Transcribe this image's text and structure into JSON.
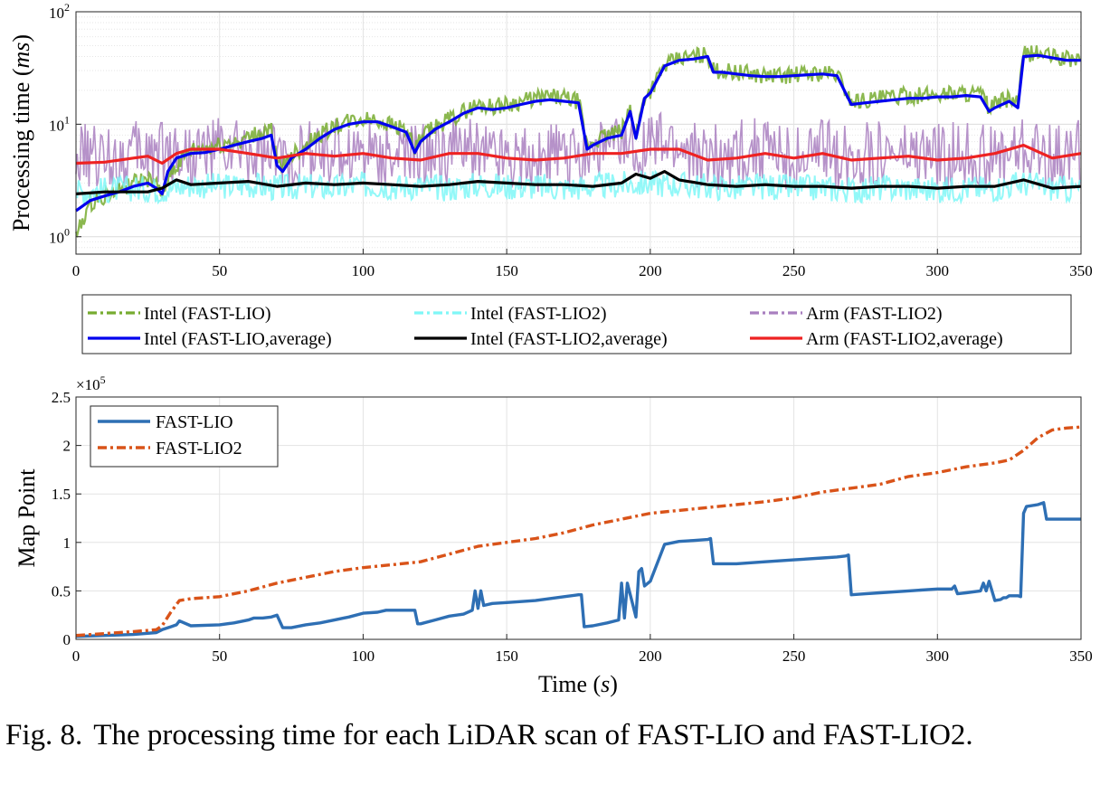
{
  "chart_data": [
    {
      "type": "line",
      "ylabel": "Processing time (ms)",
      "ylabel_plain": "Processing time (",
      "ylabel_unit": "ms",
      "xlabel": "",
      "xlim": [
        0,
        350
      ],
      "ylim": [
        0.7,
        100
      ],
      "yscale": "log",
      "grid": true,
      "x_ticks": [
        "0",
        "50",
        "100",
        "150",
        "200",
        "250",
        "300",
        "350"
      ],
      "y_ticks": [
        {
          "base": "10",
          "exp": "0"
        },
        {
          "base": "10",
          "exp": "1"
        },
        {
          "base": "10",
          "exp": "2"
        }
      ],
      "legend_position": "below",
      "series": [
        {
          "name": "Intel (FAST-LIO)",
          "color": "#77ac30",
          "style": "dash-dot",
          "kind": "raw",
          "x": [
            0,
            5,
            10,
            15,
            20,
            25,
            28,
            30,
            32,
            35,
            40,
            45,
            50,
            55,
            60,
            65,
            68,
            70,
            72,
            75,
            80,
            85,
            90,
            95,
            100,
            105,
            110,
            115,
            118,
            120,
            125,
            130,
            135,
            140,
            145,
            150,
            155,
            160,
            165,
            170,
            175,
            178,
            180,
            185,
            190,
            193,
            195,
            198,
            200,
            205,
            210,
            215,
            220,
            222,
            225,
            230,
            235,
            240,
            245,
            250,
            255,
            260,
            265,
            270,
            275,
            280,
            285,
            290,
            295,
            300,
            305,
            310,
            315,
            318,
            320,
            325,
            328,
            330,
            335,
            340,
            345,
            350
          ],
          "y": [
            1.0,
            2.0,
            2.3,
            2.6,
            3.0,
            3.2,
            2.8,
            2.2,
            3.5,
            4.2,
            5.8,
            6.0,
            6.5,
            7.0,
            7.5,
            8.5,
            9.0,
            4.5,
            4.0,
            5.5,
            6.5,
            8.0,
            9.5,
            10.5,
            11.0,
            11.0,
            10.0,
            9.0,
            5.8,
            7.5,
            9.5,
            11.0,
            13.0,
            15.0,
            14.5,
            15.0,
            16.0,
            17.0,
            17.5,
            17.0,
            16.0,
            6.5,
            7.0,
            8.0,
            8.5,
            14.0,
            8.0,
            18.0,
            20.0,
            33.0,
            38.0,
            40.0,
            42.0,
            30.0,
            30.0,
            29.0,
            28.0,
            27.0,
            27.0,
            27.5,
            28.0,
            28.5,
            28.0,
            16.0,
            16.5,
            17.0,
            17.5,
            18.0,
            18.0,
            18.5,
            19.0,
            19.0,
            18.5,
            14.0,
            15.0,
            17.0,
            15.0,
            42.0,
            43.0,
            40.0,
            38.0,
            38.0
          ]
        },
        {
          "name": "Intel (FAST-LIO2)",
          "color": "#7ff7f7",
          "style": "dash-dot",
          "kind": "raw",
          "x": [
            0,
            10,
            20,
            30,
            40,
            50,
            60,
            70,
            80,
            90,
            100,
            110,
            120,
            130,
            140,
            150,
            160,
            170,
            180,
            190,
            200,
            210,
            220,
            230,
            240,
            250,
            260,
            270,
            280,
            290,
            300,
            310,
            320,
            330,
            340,
            350
          ],
          "y": [
            2.5,
            2.6,
            2.7,
            2.6,
            2.9,
            2.8,
            2.9,
            2.7,
            2.8,
            2.7,
            2.9,
            2.8,
            2.8,
            2.7,
            2.9,
            2.8,
            2.8,
            2.7,
            2.8,
            2.9,
            3.0,
            2.9,
            2.8,
            2.7,
            2.8,
            2.7,
            2.7,
            2.6,
            2.7,
            2.7,
            2.6,
            2.7,
            2.7,
            3.0,
            2.7,
            2.6
          ]
        },
        {
          "name": "Arm (FAST-LIO2)",
          "color": "#a97fbf",
          "style": "dash-dot",
          "kind": "raw",
          "x": [
            0,
            10,
            20,
            30,
            40,
            50,
            60,
            70,
            80,
            90,
            100,
            110,
            120,
            130,
            140,
            150,
            160,
            170,
            180,
            190,
            200,
            210,
            220,
            230,
            240,
            250,
            260,
            270,
            280,
            290,
            300,
            310,
            320,
            330,
            340,
            350
          ],
          "y": [
            5.0,
            5.0,
            5.5,
            6.0,
            5.5,
            6.0,
            5.5,
            5.0,
            5.5,
            5.5,
            6.0,
            5.5,
            5.0,
            6.0,
            6.0,
            5.5,
            5.0,
            5.0,
            6.0,
            6.0,
            6.5,
            6.0,
            5.0,
            5.5,
            6.0,
            5.0,
            5.5,
            5.0,
            5.5,
            5.0,
            5.0,
            5.5,
            5.0,
            6.0,
            5.0,
            5.5
          ]
        },
        {
          "name": "Intel (FAST-LIO,average)",
          "color": "#0000ee",
          "style": "solid",
          "kind": "average",
          "x": [
            0,
            5,
            10,
            15,
            20,
            25,
            28,
            30,
            32,
            35,
            40,
            45,
            50,
            55,
            60,
            65,
            68,
            70,
            72,
            75,
            80,
            85,
            90,
            95,
            100,
            105,
            110,
            115,
            118,
            120,
            125,
            130,
            135,
            140,
            145,
            150,
            155,
            160,
            165,
            170,
            175,
            178,
            180,
            185,
            190,
            193,
            195,
            198,
            200,
            205,
            210,
            215,
            220,
            222,
            225,
            230,
            235,
            240,
            245,
            250,
            255,
            260,
            265,
            270,
            275,
            280,
            285,
            290,
            295,
            300,
            305,
            310,
            315,
            318,
            320,
            325,
            328,
            330,
            335,
            340,
            345,
            350
          ],
          "y": [
            1.7,
            2.1,
            2.3,
            2.5,
            2.8,
            3.0,
            2.7,
            2.4,
            3.8,
            5.0,
            5.5,
            5.6,
            6.0,
            6.5,
            7.0,
            7.5,
            8.0,
            4.3,
            3.8,
            5.0,
            6.0,
            7.5,
            9.0,
            10.0,
            10.5,
            10.5,
            9.5,
            8.5,
            5.6,
            7.0,
            9.0,
            10.5,
            12.5,
            14.0,
            13.5,
            14.0,
            15.0,
            16.0,
            16.5,
            16.0,
            15.5,
            6.0,
            6.5,
            7.5,
            8.0,
            13.0,
            7.5,
            17.0,
            19.0,
            33.0,
            37.0,
            38.0,
            40.0,
            29.0,
            29.0,
            28.0,
            27.0,
            26.5,
            26.5,
            27.0,
            27.5,
            28.0,
            27.0,
            15.0,
            15.5,
            16.0,
            16.5,
            17.0,
            17.0,
            17.5,
            17.5,
            18.0,
            17.5,
            13.0,
            14.0,
            16.0,
            14.0,
            40.0,
            41.0,
            39.0,
            37.0,
            37.0
          ]
        },
        {
          "name": "Intel (FAST-LIO2,average)",
          "color": "#000000",
          "style": "solid",
          "kind": "average",
          "x": [
            0,
            10,
            20,
            25,
            30,
            35,
            40,
            50,
            60,
            70,
            80,
            90,
            100,
            110,
            120,
            130,
            140,
            150,
            160,
            170,
            180,
            190,
            195,
            200,
            205,
            210,
            220,
            230,
            240,
            250,
            260,
            270,
            280,
            290,
            300,
            310,
            320,
            330,
            340,
            350
          ],
          "y": [
            2.4,
            2.5,
            2.5,
            2.5,
            2.7,
            3.2,
            2.9,
            3.0,
            3.1,
            2.8,
            3.0,
            2.9,
            3.0,
            2.9,
            2.8,
            2.9,
            3.1,
            3.0,
            2.9,
            2.9,
            2.8,
            3.0,
            3.6,
            3.3,
            3.8,
            3.2,
            2.9,
            2.8,
            2.9,
            2.8,
            2.8,
            2.7,
            2.8,
            2.8,
            2.7,
            2.8,
            2.8,
            3.2,
            2.7,
            2.8
          ]
        },
        {
          "name": "Arm (FAST-LIO2,average)",
          "color": "#ee2222",
          "style": "solid",
          "kind": "average",
          "x": [
            0,
            10,
            20,
            25,
            30,
            35,
            40,
            50,
            60,
            70,
            80,
            90,
            100,
            110,
            120,
            130,
            140,
            150,
            160,
            170,
            180,
            190,
            200,
            210,
            220,
            230,
            240,
            250,
            260,
            270,
            280,
            290,
            300,
            310,
            320,
            330,
            340,
            350
          ],
          "y": [
            4.5,
            4.6,
            5.0,
            5.2,
            4.5,
            5.5,
            6.0,
            6.0,
            5.5,
            5.0,
            5.5,
            5.2,
            5.5,
            5.0,
            4.8,
            5.5,
            5.5,
            5.0,
            4.8,
            5.0,
            5.5,
            5.5,
            6.0,
            6.0,
            4.8,
            5.0,
            5.5,
            5.0,
            5.5,
            4.8,
            5.0,
            5.2,
            4.8,
            5.0,
            5.5,
            6.5,
            5.0,
            5.5
          ]
        }
      ]
    },
    {
      "type": "line",
      "xlabel": "Time (s)",
      "xlabel_plain": "Time (",
      "xlabel_unit": "s",
      "ylabel": "Map Point",
      "xlim": [
        0,
        350
      ],
      "ylim": [
        0,
        2.5
      ],
      "y_multiplier": {
        "base": "×10",
        "exp": "5"
      },
      "grid": true,
      "x_ticks": [
        "0",
        "50",
        "100",
        "150",
        "200",
        "250",
        "300",
        "350"
      ],
      "y_ticks": [
        "0",
        "0.5",
        "1",
        "1.5",
        "2",
        "2.5"
      ],
      "legend_position": "top-left",
      "series": [
        {
          "name": "FAST-LIO",
          "color": "#2e6fb4",
          "style": "solid",
          "x": [
            0,
            10,
            20,
            28,
            30,
            33,
            35,
            36,
            40,
            50,
            55,
            60,
            62,
            65,
            68,
            70,
            72,
            75,
            80,
            85,
            90,
            95,
            100,
            105,
            108,
            110,
            112,
            115,
            118,
            119,
            120,
            125,
            130,
            135,
            138,
            139,
            140,
            141,
            142,
            145,
            150,
            160,
            170,
            175,
            176,
            177,
            180,
            185,
            189,
            190,
            191,
            192,
            195,
            196,
            197,
            198,
            200,
            205,
            210,
            215,
            220,
            221,
            222,
            225,
            230,
            240,
            250,
            260,
            265,
            268,
            269,
            270,
            275,
            280,
            290,
            300,
            305,
            306,
            307,
            310,
            315,
            316,
            317,
            318,
            320,
            322,
            323,
            324,
            325,
            328,
            329,
            330,
            331,
            335,
            337,
            338,
            340,
            345,
            350
          ],
          "y": [
            0.03,
            0.04,
            0.05,
            0.07,
            0.1,
            0.13,
            0.15,
            0.19,
            0.14,
            0.15,
            0.17,
            0.2,
            0.22,
            0.22,
            0.23,
            0.25,
            0.12,
            0.12,
            0.15,
            0.17,
            0.2,
            0.23,
            0.27,
            0.28,
            0.3,
            0.3,
            0.3,
            0.3,
            0.3,
            0.16,
            0.16,
            0.2,
            0.24,
            0.26,
            0.3,
            0.5,
            0.32,
            0.5,
            0.35,
            0.37,
            0.38,
            0.4,
            0.44,
            0.46,
            0.46,
            0.13,
            0.14,
            0.17,
            0.2,
            0.58,
            0.22,
            0.58,
            0.23,
            0.7,
            0.73,
            0.55,
            0.6,
            0.98,
            1.01,
            1.02,
            1.03,
            1.04,
            0.78,
            0.78,
            0.78,
            0.8,
            0.82,
            0.84,
            0.85,
            0.86,
            0.87,
            0.46,
            0.47,
            0.48,
            0.5,
            0.52,
            0.52,
            0.55,
            0.47,
            0.48,
            0.5,
            0.58,
            0.5,
            0.6,
            0.4,
            0.41,
            0.43,
            0.43,
            0.45,
            0.45,
            0.44,
            1.3,
            1.37,
            1.39,
            1.41,
            1.24,
            1.24,
            1.24,
            1.24
          ]
        },
        {
          "name": "FAST-LIO2",
          "color": "#d95319",
          "style": "dash-dot",
          "x": [
            0,
            10,
            20,
            28,
            30,
            33,
            36,
            40,
            50,
            60,
            70,
            80,
            90,
            100,
            110,
            120,
            130,
            140,
            150,
            160,
            170,
            180,
            190,
            200,
            210,
            220,
            230,
            240,
            250,
            260,
            270,
            280,
            290,
            300,
            310,
            320,
            325,
            330,
            335,
            340,
            345,
            350
          ],
          "y": [
            0.04,
            0.06,
            0.08,
            0.1,
            0.14,
            0.28,
            0.4,
            0.42,
            0.44,
            0.5,
            0.58,
            0.64,
            0.7,
            0.74,
            0.77,
            0.8,
            0.88,
            0.96,
            1.0,
            1.04,
            1.1,
            1.18,
            1.24,
            1.3,
            1.33,
            1.36,
            1.39,
            1.42,
            1.46,
            1.52,
            1.56,
            1.6,
            1.68,
            1.72,
            1.78,
            1.82,
            1.85,
            1.95,
            2.08,
            2.16,
            2.18,
            2.19
          ]
        }
      ]
    }
  ],
  "caption": {
    "label": "Fig. 8.",
    "text": "The processing time for each LiDAR scan of FAST-LIO and FAST-LIO2."
  }
}
